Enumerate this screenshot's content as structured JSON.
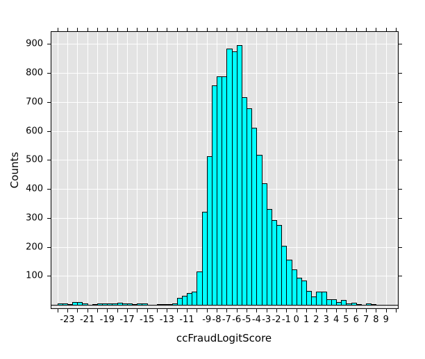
{
  "chart": {
    "xlabel": "ccFraudLogitScore",
    "ylabel": "Counts"
  },
  "chart_data": {
    "type": "bar",
    "subtype": "histogram",
    "title": "",
    "xlabel": "ccFraudLogitScore",
    "ylabel": "Counts",
    "bin_width": 0.5,
    "bin_starts": [
      -24.0,
      -23.5,
      -23.0,
      -22.5,
      -22.0,
      -21.5,
      -21.0,
      -20.5,
      -20.0,
      -19.5,
      -19.0,
      -18.5,
      -18.0,
      -17.5,
      -17.0,
      -16.5,
      -16.0,
      -15.5,
      -15.0,
      -14.5,
      -14.0,
      -13.5,
      -13.0,
      -12.5,
      -12.0,
      -11.5,
      -11.0,
      -10.5,
      -10.0,
      -9.5,
      -9.0,
      -8.5,
      -8.0,
      -7.5,
      -7.0,
      -6.5,
      -6.0,
      -5.5,
      -5.0,
      -4.5,
      -4.0,
      -3.5,
      -3.0,
      -2.5,
      -2.0,
      -1.5,
      -1.0,
      -0.5,
      0.0,
      0.5,
      1.0,
      1.5,
      2.0,
      2.5,
      3.0,
      3.5,
      4.0,
      4.5,
      5.0,
      5.5,
      6.0,
      6.5,
      7.0,
      7.5,
      8.0,
      8.5,
      9.0,
      9.5
    ],
    "counts": [
      4,
      4,
      3,
      9,
      9,
      4,
      0,
      3,
      4,
      4,
      4,
      4,
      8,
      4,
      4,
      3,
      4,
      4,
      0,
      0,
      3,
      3,
      3,
      5,
      25,
      30,
      40,
      45,
      115,
      320,
      513,
      758,
      787,
      789,
      884,
      874,
      895,
      716,
      678,
      610,
      518,
      419,
      331,
      292,
      275,
      204,
      156,
      123,
      94,
      84,
      48,
      28,
      45,
      46,
      18,
      20,
      10,
      16,
      5,
      8,
      3,
      0,
      4,
      2,
      0,
      0,
      0,
      0
    ],
    "xlim": [
      -24.6,
      10.2
    ],
    "ylim": [
      0,
      940
    ],
    "x_minor_tick_every": 1,
    "x_tick_positions_all": [
      -24,
      -23,
      -22,
      -21,
      -20,
      -19,
      -18,
      -17,
      -16,
      -15,
      -14,
      -13,
      -12,
      -11,
      -10,
      -9,
      -8,
      -7,
      -6,
      -5,
      -4,
      -3,
      -2,
      -1,
      0,
      1,
      2,
      3,
      4,
      5,
      6,
      7,
      8,
      9,
      10
    ],
    "x_labeled_ticks": [
      -23,
      -21,
      -19,
      -17,
      -15,
      -13,
      -11,
      -9,
      -8,
      -7,
      -6,
      -5,
      -4,
      -3,
      -2,
      -1,
      0,
      1,
      2,
      3,
      4,
      5,
      6,
      7,
      8,
      9
    ],
    "y_ticks": [
      100,
      200,
      300,
      400,
      500,
      600,
      700,
      800,
      900
    ],
    "grid": {
      "vertical_every": 1,
      "horizontal_every": 100,
      "color": "#ffffff"
    },
    "legend": "none",
    "colors": {
      "bar_fill": "#00ffff",
      "bar_border": "#000000",
      "panel_background": "#e3e3e3",
      "frame": "#000000",
      "text": "#000000",
      "figure_background": "#ffffff"
    }
  }
}
